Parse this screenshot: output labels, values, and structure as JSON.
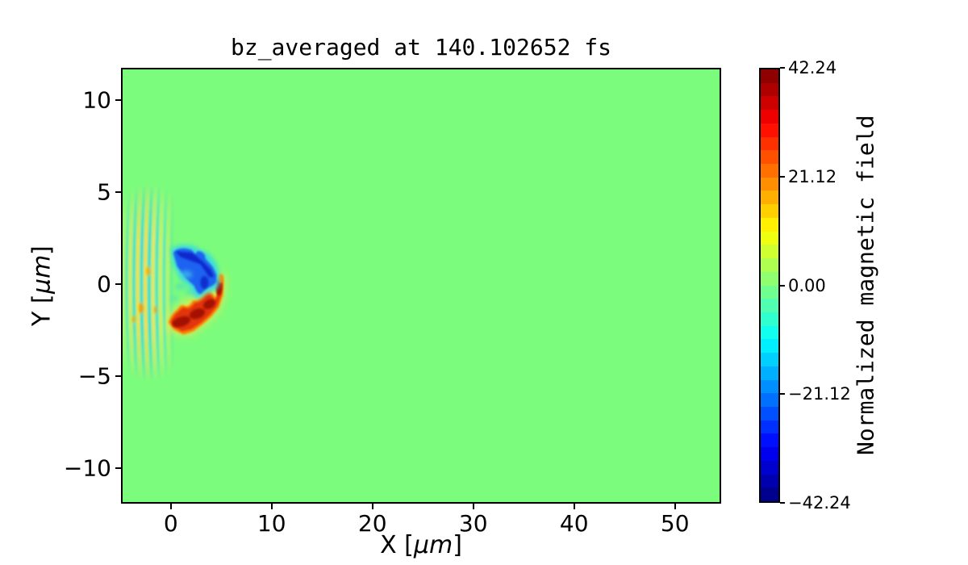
{
  "figure": {
    "background_color": "#ffffff"
  },
  "chart_data": {
    "type": "heatmap",
    "title": "bz_averaged at 140.102652 fs",
    "xlabel": "X [μm]",
    "xlabel_parts": [
      "X [",
      "μm",
      "]"
    ],
    "ylabel": "Y [μm]",
    "ylabel_parts": [
      "Y [",
      "μm",
      "]"
    ],
    "xlim": [
      -4.94,
      54.58
    ],
    "ylim": [
      -11.93,
      11.75
    ],
    "xticks": [
      0,
      10,
      20,
      30,
      40,
      50
    ],
    "xtick_labels": [
      "0",
      "10",
      "20",
      "30",
      "40",
      "50"
    ],
    "yticks": [
      10,
      5,
      0,
      -5,
      -10
    ],
    "ytick_labels": [
      "10",
      "5",
      "0",
      "−5",
      "−10"
    ],
    "grid": false,
    "legend": "none",
    "colormap": "jet",
    "colormap_levels": 32,
    "background_value": 0,
    "background_value_color": "#7cfc7c",
    "colorbar": {
      "label": "Normalized magnetic field",
      "position": "right",
      "vmin": -42.24,
      "vmax": 42.24,
      "ticks": [
        42.24,
        21.12,
        0,
        -21.12,
        -42.24
      ],
      "tick_labels": [
        "42.24",
        "21.12",
        "0.00",
        "−21.12",
        "−42.24"
      ]
    },
    "features": [
      {
        "name": "laser-pulse-ripples",
        "description": "vertical alternating yellow/cyan oscillation bands on green zero-field background",
        "x_range": [
          -4.9,
          0.3
        ],
        "y_range": [
          -4.2,
          4.2
        ],
        "approx_amplitude": 10
      },
      {
        "name": "negative-field-lobe",
        "description": "blue wedge of negative bz above axis",
        "x_range": [
          0.0,
          4.5
        ],
        "y_range": [
          -0.6,
          2.0
        ],
        "approx_peak": -42
      },
      {
        "name": "positive-field-lobe",
        "description": "red/orange hook of positive bz below axis curling up at x≈5",
        "x_range": [
          -0.4,
          5.3
        ],
        "y_range": [
          -2.3,
          0.6
        ],
        "approx_peak": 42
      }
    ]
  }
}
